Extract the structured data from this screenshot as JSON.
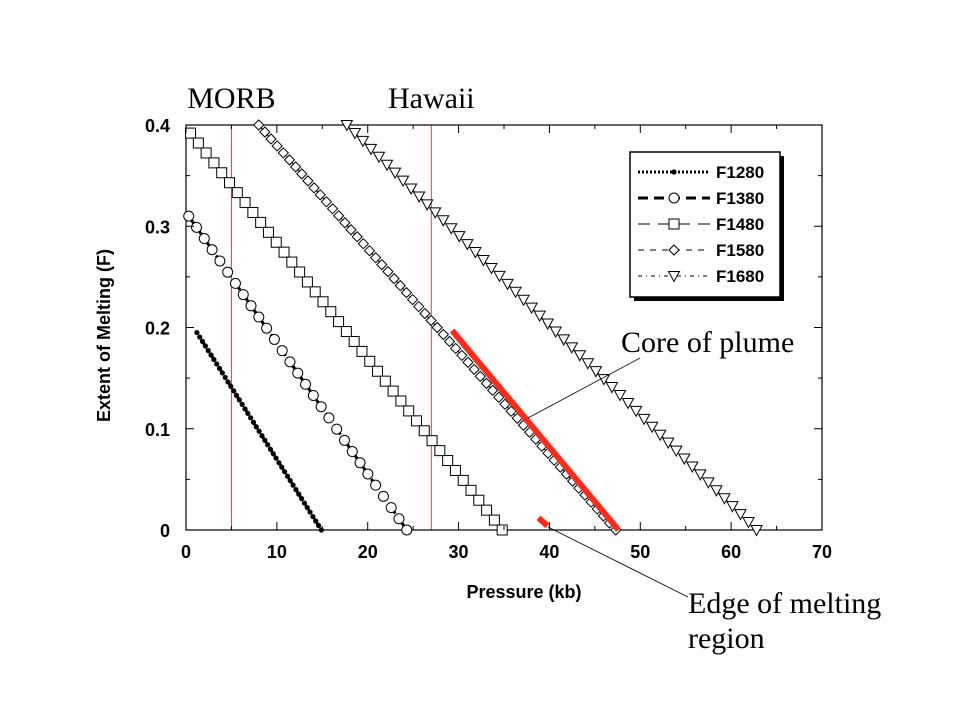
{
  "chart_data": {
    "type": "scatter",
    "xlabel": "Pressure (kb)",
    "ylabel": "Extent of Melting (F)",
    "xlim": [
      0,
      70
    ],
    "ylim": [
      0,
      0.4
    ],
    "x_ticks": [
      "0",
      "10",
      "20",
      "30",
      "40",
      "50",
      "60",
      "70"
    ],
    "y_ticks": [
      "0",
      "0.1",
      "0.2",
      "0.3",
      "0.4"
    ],
    "grid": false,
    "legend_position": "top-right",
    "series": [
      {
        "name": "F1280",
        "marker": "small-filled-circle",
        "line": "dotted-heavy",
        "x_start": 1.2,
        "y_start": 0.195,
        "x_end": 14.9,
        "y_end": 0.0,
        "points": 45
      },
      {
        "name": "F1380",
        "marker": "open-circle",
        "line": "dashed-heavy",
        "x_start": 0.3,
        "y_start": 0.31,
        "x_end": 24.3,
        "y_end": 0.0,
        "points": 29
      },
      {
        "name": "F1480",
        "marker": "open-square",
        "line": "long-dash-thin",
        "x_start": 0.5,
        "y_start": 0.392,
        "x_end": 34.8,
        "y_end": 0.0,
        "points": 41
      },
      {
        "name": "F1580",
        "marker": "open-diamond",
        "line": "dashed-thin",
        "x_start": 8.0,
        "y_start": 0.4,
        "x_end": 47.3,
        "y_end": 0.0,
        "points": 59
      },
      {
        "name": "F1680",
        "marker": "open-triangle-down",
        "line": "dash-dot-thin",
        "x_start": 17.7,
        "y_start": 0.4,
        "x_end": 62.8,
        "y_end": 0.0,
        "points": 52
      }
    ],
    "vertical_lines": [
      {
        "x": 5.0,
        "label": "MORB",
        "color": "#c0504d"
      },
      {
        "x": 27.0,
        "label": "Hawaii",
        "color": "#c0504d"
      }
    ],
    "highlights": [
      {
        "label": "Core of plume",
        "x": [
          29.3,
          47.6
        ],
        "y": [
          0.197,
          0.0
        ],
        "color": "#ff2a1a"
      },
      {
        "label": "Edge of melting region",
        "x": [
          38.8,
          39.8
        ],
        "y": [
          0.012,
          0.004
        ],
        "color": "#ff2a1a"
      }
    ],
    "annotations": {
      "core": "Core of plume",
      "edge_line1": "Edge of melting",
      "edge_line2": "region"
    }
  }
}
